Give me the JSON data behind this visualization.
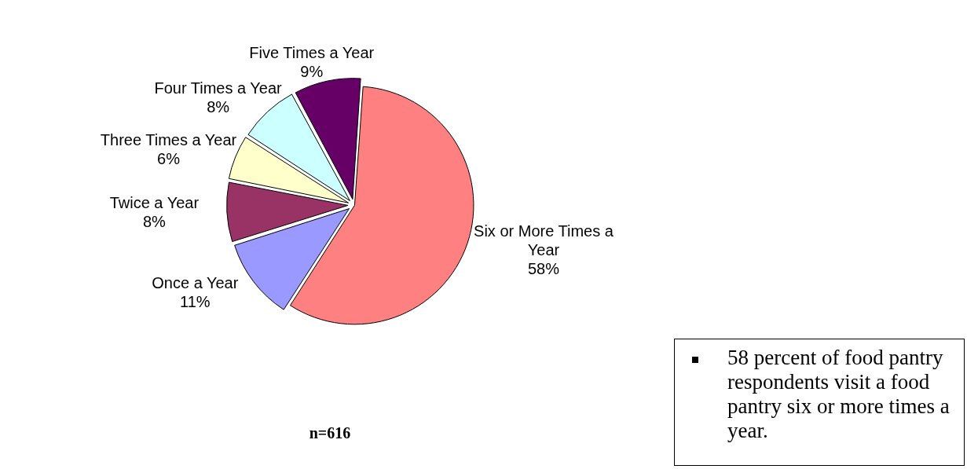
{
  "chart_data": {
    "type": "pie",
    "categories": [
      "Six or More Times a Year",
      "Once a Year",
      "Twice a Year",
      "Three Times a Year",
      "Four Times a Year",
      "Five Times a Year"
    ],
    "values": [
      58,
      11,
      8,
      6,
      8,
      9
    ],
    "colors": [
      "#ff8080",
      "#9999ff",
      "#993366",
      "#ffffcc",
      "#ccffff",
      "#660066"
    ],
    "value_labels": [
      "58%",
      "11%",
      "8%",
      "6%",
      "8%",
      "9%"
    ],
    "legend": false,
    "annotations": [
      "n=616",
      "58 percent of food pantry respondents visit a food pantry six or more times a year."
    ]
  }
}
